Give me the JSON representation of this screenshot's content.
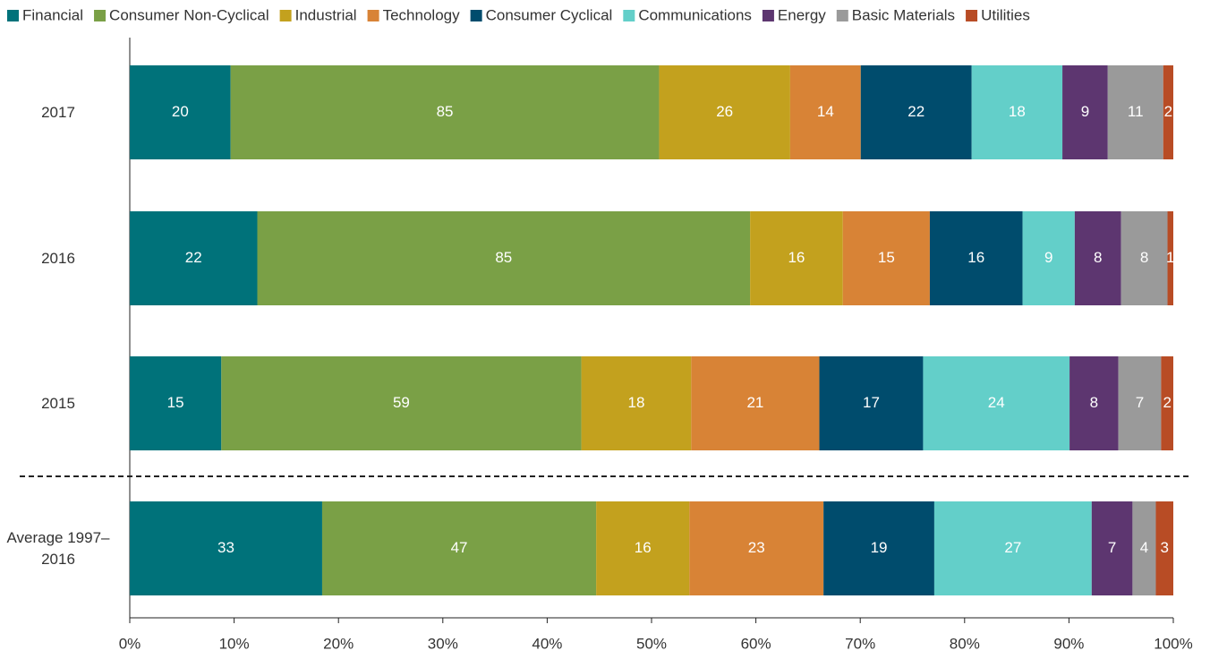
{
  "chart_data": {
    "type": "stacked-bar-horizontal",
    "normalize": true,
    "categories": [
      "2017",
      "2016",
      "2015",
      "Average 1997–2016"
    ],
    "series": [
      {
        "name": "Financial",
        "color": "#00727a",
        "values": [
          20,
          22,
          15,
          33
        ]
      },
      {
        "name": "Consumer Non-Cyclical",
        "color": "#7aa046",
        "values": [
          85,
          85,
          59,
          47
        ]
      },
      {
        "name": "Industrial",
        "color": "#c3a11e",
        "values": [
          26,
          16,
          18,
          16
        ]
      },
      {
        "name": "Technology",
        "color": "#d88336",
        "values": [
          14,
          15,
          21,
          23
        ]
      },
      {
        "name": "Consumer Cyclical",
        "color": "#004c6d",
        "values": [
          22,
          16,
          17,
          19
        ]
      },
      {
        "name": "Communications",
        "color": "#63cfc9",
        "values": [
          18,
          9,
          24,
          27
        ]
      },
      {
        "name": "Energy",
        "color": "#5d3670",
        "values": [
          9,
          8,
          8,
          7
        ]
      },
      {
        "name": "Basic Materials",
        "color": "#9a9a9a",
        "values": [
          11,
          8,
          7,
          4
        ]
      },
      {
        "name": "Utilities",
        "color": "#b84c25",
        "values": [
          2,
          1,
          2,
          3
        ]
      }
    ],
    "xlim": [
      0,
      100
    ],
    "xticks": [
      {
        "value": 0,
        "label": "0%"
      },
      {
        "value": 10,
        "label": "10%"
      },
      {
        "value": 20,
        "label": "20%"
      },
      {
        "value": 30,
        "label": "30%"
      },
      {
        "value": 40,
        "label": "40%"
      },
      {
        "value": 50,
        "label": "50%"
      },
      {
        "value": 60,
        "label": "60%"
      },
      {
        "value": 70,
        "label": "70%"
      },
      {
        "value": 80,
        "label": "80%"
      },
      {
        "value": 90,
        "label": "90%"
      },
      {
        "value": 100,
        "label": "100%"
      }
    ],
    "legend": "top"
  }
}
